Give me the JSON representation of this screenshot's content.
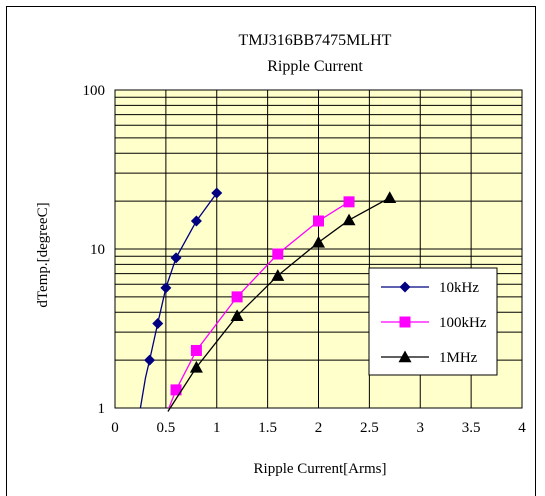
{
  "chart_data": {
    "type": "line",
    "title": "TMJ316BB7475MLHT",
    "subtitle": "Ripple Current",
    "xlabel": "Ripple Current[Arms]",
    "ylabel": "dTemp.[degreeC]",
    "xlim": [
      0,
      4
    ],
    "ylim": [
      1,
      100
    ],
    "yscale": "log",
    "x_ticks": [
      "0",
      "0.5",
      "1",
      "1.5",
      "2",
      "2.5",
      "3",
      "3.5",
      "4"
    ],
    "y_ticks": [
      "1",
      "10",
      "100"
    ],
    "grid": true,
    "legend_position": "right",
    "plot_background": "#ffffcc",
    "series": [
      {
        "name": "10kHz",
        "color": "#000080",
        "marker": "diamond",
        "points": [
          [
            0.34,
            2.0
          ],
          [
            0.42,
            3.4
          ],
          [
            0.5,
            5.7
          ],
          [
            0.6,
            8.8
          ],
          [
            0.8,
            15.0
          ],
          [
            1.0,
            22.5
          ]
        ],
        "curve": [
          [
            0.25,
            1.0
          ],
          [
            0.3,
            1.55
          ],
          [
            0.34,
            2.0
          ],
          [
            0.42,
            3.4
          ],
          [
            0.5,
            5.7
          ],
          [
            0.6,
            8.8
          ],
          [
            0.8,
            15.0
          ],
          [
            1.0,
            22.5
          ]
        ]
      },
      {
        "name": "100kHz",
        "color": "#ff00ff",
        "marker": "square",
        "points": [
          [
            0.6,
            1.3
          ],
          [
            0.8,
            2.3
          ],
          [
            1.2,
            5.0
          ],
          [
            1.6,
            9.3
          ],
          [
            2.0,
            15.0
          ],
          [
            2.3,
            19.8
          ]
        ],
        "curve": [
          [
            0.53,
            1.0
          ],
          [
            0.6,
            1.3
          ],
          [
            0.8,
            2.3
          ],
          [
            1.2,
            5.0
          ],
          [
            1.6,
            9.3
          ],
          [
            2.0,
            15.0
          ],
          [
            2.3,
            19.8
          ]
        ]
      },
      {
        "name": "1MHz",
        "color": "#000000",
        "marker": "triangle",
        "points": [
          [
            0.8,
            1.8
          ],
          [
            1.2,
            3.8
          ],
          [
            1.6,
            6.8
          ],
          [
            2.0,
            11.0
          ],
          [
            2.3,
            15.2
          ],
          [
            2.7,
            21.0
          ]
        ],
        "curve": [
          [
            0.52,
            0.95
          ],
          [
            0.8,
            1.8
          ],
          [
            1.2,
            3.8
          ],
          [
            1.6,
            6.8
          ],
          [
            2.0,
            11.0
          ],
          [
            2.3,
            15.2
          ],
          [
            2.7,
            21.0
          ]
        ]
      }
    ]
  }
}
